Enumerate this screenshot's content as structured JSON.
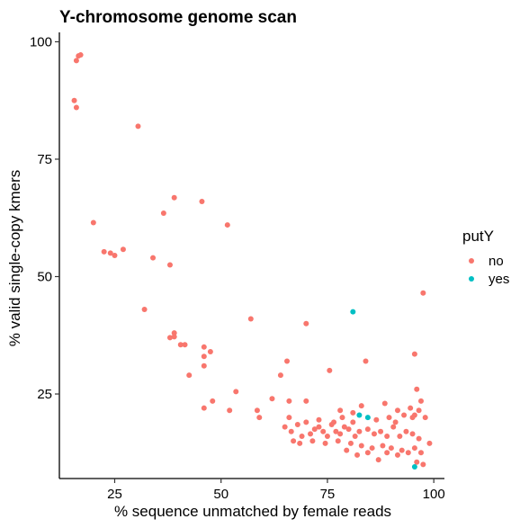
{
  "chart_data": {
    "type": "scatter",
    "title": "Y-chromosome genome scan",
    "xlabel": "% sequence unmatched by female reads",
    "ylabel": "% valid single-copy kmers",
    "xlim": [
      12,
      102.5
    ],
    "ylim": [
      7,
      102
    ],
    "xticks": [
      25,
      50,
      75,
      100
    ],
    "yticks": [
      25,
      50,
      75,
      100
    ],
    "grid": false,
    "legend": {
      "title": "putY",
      "position": "right",
      "entries": [
        {
          "label": "no",
          "color": "#F8766D"
        },
        {
          "label": "yes",
          "color": "#00BFC4"
        }
      ]
    },
    "series": [
      {
        "name": "no",
        "color": "#F8766D",
        "points": [
          [
            16.0,
            96.0
          ],
          [
            16.5,
            97.0
          ],
          [
            17.0,
            97.2
          ],
          [
            15.5,
            87.5
          ],
          [
            16.0,
            86.0
          ],
          [
            30.5,
            82.0
          ],
          [
            39.0,
            66.8
          ],
          [
            45.5,
            66.0
          ],
          [
            36.5,
            63.5
          ],
          [
            51.5,
            61.0
          ],
          [
            20.0,
            61.5
          ],
          [
            22.5,
            55.3
          ],
          [
            24.0,
            55.0
          ],
          [
            25.0,
            54.5
          ],
          [
            27.0,
            55.8
          ],
          [
            34.0,
            54.0
          ],
          [
            38.0,
            52.5
          ],
          [
            97.5,
            46.5
          ],
          [
            32.0,
            43.0
          ],
          [
            57.0,
            41.0
          ],
          [
            70.0,
            40.0
          ],
          [
            38.0,
            37.0
          ],
          [
            39.0,
            37.2
          ],
          [
            39.0,
            38.0
          ],
          [
            40.5,
            35.5
          ],
          [
            41.5,
            35.5
          ],
          [
            46.0,
            35.0
          ],
          [
            47.5,
            34.0
          ],
          [
            46.0,
            33.0
          ],
          [
            46.0,
            31.0
          ],
          [
            42.5,
            29.0
          ],
          [
            65.5,
            32.0
          ],
          [
            84.0,
            32.0
          ],
          [
            95.5,
            33.5
          ],
          [
            64.0,
            29.0
          ],
          [
            75.5,
            30.0
          ],
          [
            53.5,
            25.5
          ],
          [
            48.0,
            23.5
          ],
          [
            46.0,
            22.0
          ],
          [
            52.0,
            21.5
          ],
          [
            58.5,
            21.5
          ],
          [
            59.0,
            20.0
          ],
          [
            62.0,
            24.0
          ],
          [
            66.0,
            23.5
          ],
          [
            96.0,
            26.0
          ],
          [
            97.0,
            23.5
          ],
          [
            96.5,
            21.5
          ],
          [
            70.0,
            23.5
          ],
          [
            78.0,
            21.5
          ],
          [
            81.0,
            21.0
          ],
          [
            83.0,
            22.5
          ],
          [
            88.5,
            23.0
          ],
          [
            91.5,
            21.5
          ],
          [
            94.5,
            22.0
          ],
          [
            95.5,
            20.5
          ],
          [
            95.0,
            20.0
          ],
          [
            98.0,
            20.0
          ],
          [
            65.0,
            18.0
          ],
          [
            66.5,
            17.0
          ],
          [
            68.0,
            18.5
          ],
          [
            70.0,
            19.0
          ],
          [
            71.0,
            16.5
          ],
          [
            72.0,
            17.5
          ],
          [
            73.0,
            18.0
          ],
          [
            74.0,
            17.0
          ],
          [
            75.0,
            16.0
          ],
          [
            76.0,
            18.5
          ],
          [
            77.0,
            17.0
          ],
          [
            78.0,
            16.5
          ],
          [
            79.0,
            18.0
          ],
          [
            80.0,
            17.5
          ],
          [
            81.5,
            16.0
          ],
          [
            82.5,
            17.0
          ],
          [
            84.5,
            17.5
          ],
          [
            86.0,
            16.5
          ],
          [
            87.5,
            17.0
          ],
          [
            89.0,
            16.0
          ],
          [
            90.5,
            18.0
          ],
          [
            92.0,
            16.0
          ],
          [
            93.5,
            17.0
          ],
          [
            95.0,
            16.5
          ],
          [
            96.5,
            15.5
          ],
          [
            67.0,
            15.0
          ],
          [
            71.5,
            15.0
          ],
          [
            74.5,
            14.5
          ],
          [
            77.5,
            15.0
          ],
          [
            80.5,
            14.5
          ],
          [
            83.0,
            14.0
          ],
          [
            85.5,
            13.5
          ],
          [
            88.0,
            14.0
          ],
          [
            90.0,
            13.5
          ],
          [
            92.5,
            13.0
          ],
          [
            94.0,
            12.5
          ],
          [
            97.0,
            12.5
          ],
          [
            99.0,
            14.5
          ],
          [
            96.0,
            10.5
          ],
          [
            97.5,
            10.0
          ],
          [
            87.0,
            11.0
          ],
          [
            73.0,
            19.5
          ],
          [
            76.5,
            19.0
          ],
          [
            78.5,
            20.0
          ],
          [
            66.0,
            20.0
          ],
          [
            69.0,
            16.0
          ],
          [
            81.0,
            19.0
          ],
          [
            86.5,
            19.5
          ],
          [
            89.5,
            20.0
          ],
          [
            91.0,
            19.0
          ],
          [
            93.0,
            20.5
          ],
          [
            68.5,
            14.5
          ],
          [
            79.5,
            13.0
          ],
          [
            82.0,
            12.0
          ],
          [
            84.5,
            12.5
          ],
          [
            89.0,
            12.5
          ],
          [
            91.5,
            12.0
          ],
          [
            95.5,
            13.5
          ]
        ]
      },
      {
        "name": "yes",
        "color": "#00BFC4",
        "points": [
          [
            81.0,
            42.5
          ],
          [
            82.5,
            20.5
          ],
          [
            84.5,
            20.0
          ],
          [
            95.5,
            9.5
          ]
        ]
      }
    ]
  }
}
